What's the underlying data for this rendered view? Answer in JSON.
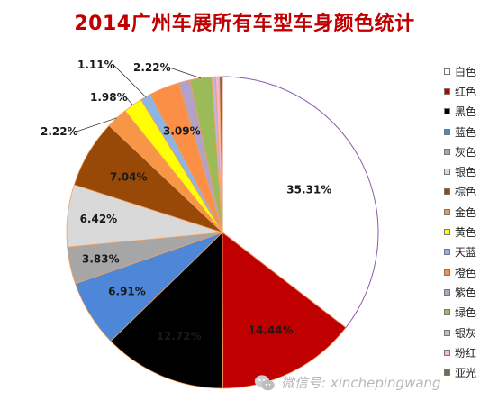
{
  "chart_data": {
    "type": "pie",
    "title": "2014广州车展所有车型车身颜色统计",
    "start_angle_deg": 0,
    "direction": "clockwise",
    "slices": [
      {
        "name": "白色",
        "value": 35.31,
        "label": "35.31%",
        "color": "#ffffff"
      },
      {
        "name": "红色",
        "value": 14.44,
        "label": "14.44%",
        "color": "#c00000"
      },
      {
        "name": "黑色",
        "value": 12.72,
        "label": "12.72%",
        "color": "#000000"
      },
      {
        "name": "蓝色",
        "value": 6.91,
        "label": "6.91%",
        "color": "#4f87d8"
      },
      {
        "name": "灰色",
        "value": 3.83,
        "label": "3.83%",
        "color": "#a6a6a6"
      },
      {
        "name": "银色",
        "value": 6.42,
        "label": "6.42%",
        "color": "#d9d9d9"
      },
      {
        "name": "棕色",
        "value": 7.04,
        "label": "7.04%",
        "color": "#984807"
      },
      {
        "name": "金色",
        "value": 2.22,
        "label": "2.22%",
        "color": "#f79646"
      },
      {
        "name": "黄色",
        "value": 1.98,
        "label": "1.98%",
        "color": "#ffff00"
      },
      {
        "name": "天蓝",
        "value": 1.11,
        "label": "1.11%",
        "color": "#8db4e2"
      },
      {
        "name": "橙色",
        "value": 3.09,
        "label": "3.09%",
        "color": "#fa8f45"
      },
      {
        "name": "紫色",
        "value": 1.2,
        "label": "",
        "color": "#b3a2c7"
      },
      {
        "name": "绿色",
        "value": 2.22,
        "label": "2.22%",
        "color": "#9bbb59"
      },
      {
        "name": "银灰",
        "value": 0.4,
        "label": "",
        "color": "#c0b8d8"
      },
      {
        "name": "粉红",
        "value": 0.4,
        "label": "",
        "color": "#f4b6d2"
      },
      {
        "name": "亚光",
        "value": 0.3,
        "label": "",
        "color": "#7a6a50"
      }
    ],
    "legend_position": "right",
    "legend": [
      "白色",
      "红色",
      "黑色",
      "蓝色",
      "灰色",
      "银色",
      "棕色",
      "金色",
      "黄色",
      "天蓝",
      "橙色",
      "紫色",
      "绿色",
      "银灰",
      "粉红",
      "亚光"
    ]
  },
  "watermark": {
    "text": "微信号: xinchepingwang",
    "icon": "wechat-icon"
  }
}
